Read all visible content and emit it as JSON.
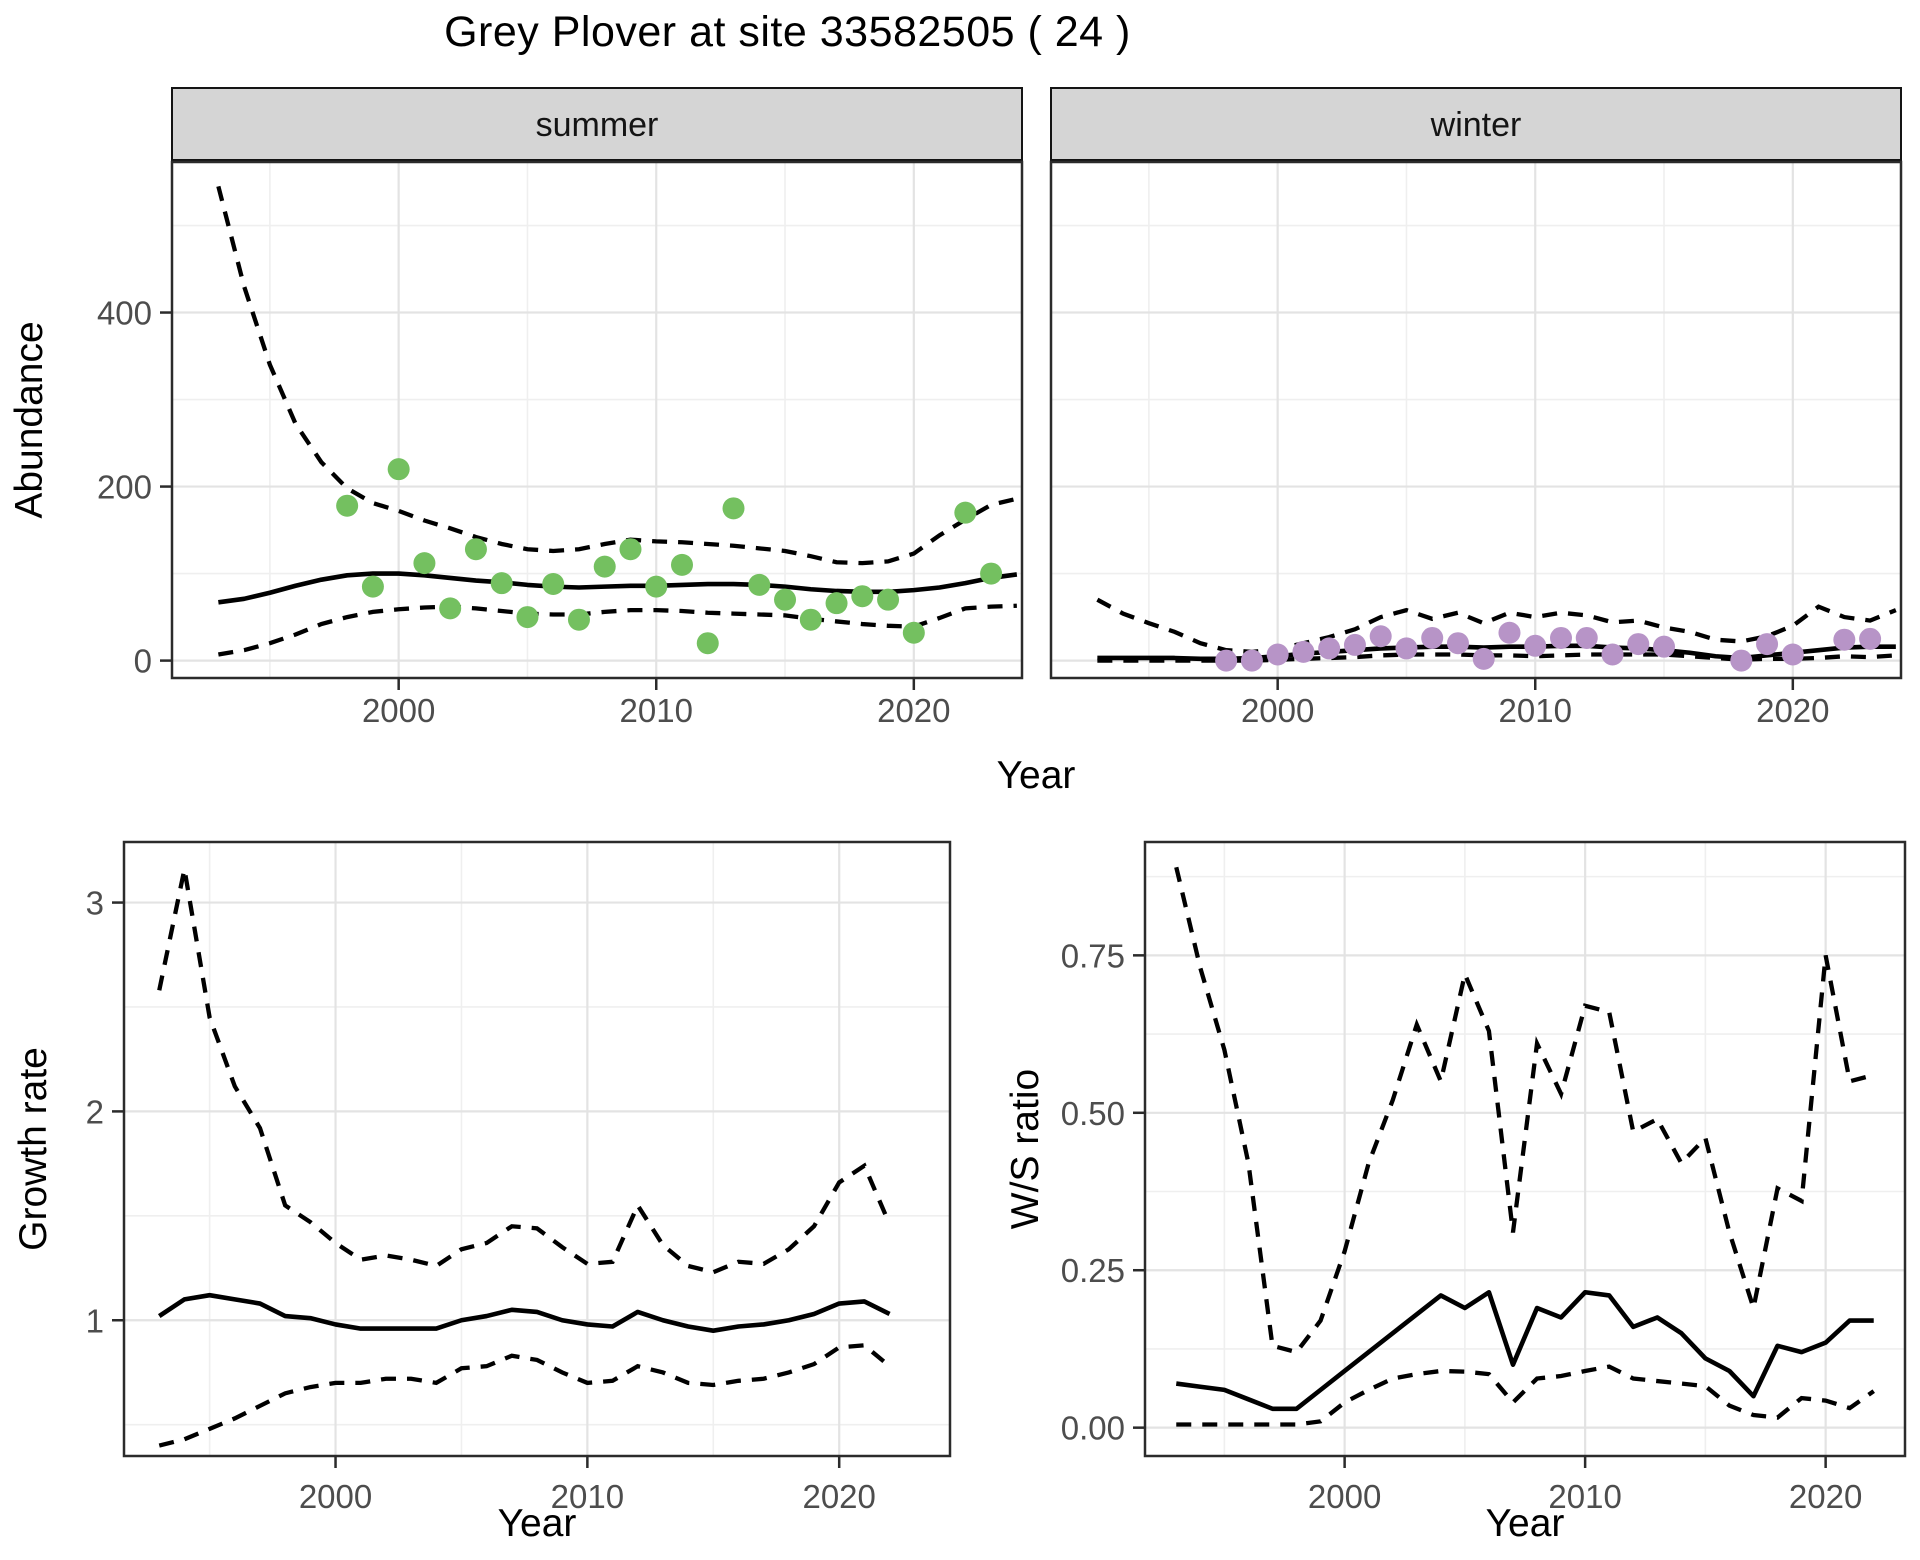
{
  "title": "Grey Plover at site 33582505 ( 24 )",
  "colors": {
    "background": "#FFFFFF",
    "summer_point": "#74C060",
    "winter_point": "#B794C7",
    "line": "#000000",
    "grid_major": "#E3E3E3",
    "grid_minor": "#EFEFEF",
    "strip_fill": "#D5D5D5",
    "strip_text": "#141414",
    "panel_border": "#2B2B2B",
    "tick_label": "#4D4D4D",
    "axis_title": "#000000"
  },
  "chart_data": [
    {
      "id": "abundance",
      "type": "scatter",
      "xlabel": "Year",
      "ylabel": "Abundance",
      "xlim": [
        1991.2,
        2024.2
      ],
      "ylim": [
        -20,
        573
      ],
      "xticks": [
        2000,
        2010,
        2020
      ],
      "xtick_labels": [
        "2000",
        "2010",
        "2020"
      ],
      "xminor": [
        1995,
        2005,
        2015
      ],
      "yticks": [
        0,
        200,
        400
      ],
      "ytick_labels": [
        "0",
        "200",
        "400"
      ],
      "yminor": [
        100,
        300,
        500
      ],
      "legend_position": "none",
      "grid": true,
      "facets": [
        {
          "label": "summer",
          "point_color_key": "summer_point",
          "points": {
            "years": [
              1998,
              1999,
              2000,
              2001,
              2002,
              2003,
              2004,
              2005,
              2006,
              2007,
              2008,
              2009,
              2010,
              2011,
              2012,
              2013,
              2014,
              2015,
              2016,
              2017,
              2018,
              2019,
              2020,
              2022,
              2023
            ],
            "values": [
              178,
              85,
              220,
              112,
              60,
              128,
              89,
              50,
              88,
              47,
              108,
              128,
              85,
              110,
              20,
              175,
              87,
              70,
              47,
              66,
              74,
              70,
              32,
              170,
              100
            ]
          },
          "fit": {
            "start": 1993,
            "values": [
              67,
              71,
              78,
              86,
              93,
              98,
              100,
              100,
              98,
              95,
              92,
              90,
              87,
              85,
              84,
              85,
              86,
              86,
              87,
              88,
              88,
              87,
              85,
              82,
              80,
              79,
              79,
              81,
              84,
              89,
              95,
              99
            ]
          },
          "upper": {
            "start": 1993,
            "values": [
              545,
              430,
              340,
              272,
              228,
              198,
              181,
              172,
              161,
              152,
              142,
              134,
              128,
              126,
              128,
              134,
              139,
              137,
              136,
              134,
              132,
              129,
              126,
              120,
              113,
              112,
              114,
              123,
              144,
              162,
              179,
              186
            ]
          },
          "lower": {
            "start": 1993,
            "values": [
              7,
              12,
              20,
              30,
              42,
              50,
              56,
              59,
              61,
              62,
              60,
              57,
              54,
              53,
              53,
              56,
              58,
              58,
              57,
              55,
              54,
              53,
              52,
              48,
              45,
              42,
              40,
              39,
              49,
              60,
              62,
              63
            ]
          }
        },
        {
          "label": "winter",
          "point_color_key": "winter_point",
          "points": {
            "years": [
              1998,
              1999,
              2000,
              2001,
              2002,
              2003,
              2004,
              2005,
              2006,
              2007,
              2008,
              2009,
              2010,
              2011,
              2012,
              2013,
              2014,
              2015,
              2018,
              2019,
              2020,
              2022,
              2023
            ],
            "values": [
              0,
              0,
              7,
              10,
              14,
              18,
              28,
              14,
              26,
              20,
              2,
              32,
              17,
              26,
              26,
              7,
              19,
              16,
              0,
              19,
              7,
              24,
              25
            ]
          },
          "fit": {
            "start": 1993,
            "values": [
              3,
              3,
              3,
              3,
              2,
              2,
              3,
              5,
              8,
              10,
              12,
              14,
              15,
              16,
              16,
              15,
              16,
              16,
              17,
              17,
              15,
              14,
              12,
              9,
              5,
              3,
              6,
              9,
              12,
              15,
              16,
              16
            ]
          },
          "upper": {
            "start": 1993,
            "values": [
              70,
              54,
              43,
              33,
              20,
              12,
              10,
              13,
              20,
              27,
              36,
              50,
              58,
              48,
              55,
              43,
              55,
              50,
              55,
              52,
              44,
              46,
              38,
              33,
              24,
              22,
              28,
              40,
              62,
              50,
              46,
              58
            ]
          },
          "lower": {
            "start": 1993,
            "values": [
              0,
              0,
              0,
              0,
              0,
              0,
              0,
              1,
              2,
              3,
              4,
              6,
              7,
              7,
              7,
              6,
              6,
              5,
              6,
              7,
              7,
              7,
              7,
              5,
              3,
              1,
              2,
              2,
              3,
              5,
              4,
              6
            ]
          }
        }
      ]
    },
    {
      "id": "growth_rate",
      "type": "line",
      "xlabel": "Year",
      "ylabel": "Growth rate",
      "xlim": [
        1991.6,
        2024.4
      ],
      "ylim": [
        0.35,
        3.29
      ],
      "xticks": [
        2000,
        2010,
        2020
      ],
      "xtick_labels": [
        "2000",
        "2010",
        "2020"
      ],
      "xminor": [
        1995,
        2005,
        2015
      ],
      "yticks": [
        1,
        2,
        3
      ],
      "ytick_labels": [
        "1",
        "2",
        "3"
      ],
      "yminor": [
        0.5,
        1.5,
        2.5
      ],
      "legend_position": "none",
      "grid": true,
      "facets": [
        {
          "label": null,
          "fit": {
            "start": 1993,
            "values": [
              1.02,
              1.1,
              1.12,
              1.1,
              1.08,
              1.02,
              1.01,
              0.98,
              0.96,
              0.96,
              0.96,
              0.96,
              1.0,
              1.02,
              1.05,
              1.04,
              1.0,
              0.98,
              0.97,
              1.04,
              1.0,
              0.97,
              0.95,
              0.97,
              0.98,
              1.0,
              1.03,
              1.08,
              1.09,
              1.03
            ]
          },
          "upper": {
            "start": 1993,
            "values": [
              2.58,
              3.16,
              2.45,
              2.12,
              1.92,
              1.55,
              1.47,
              1.37,
              1.29,
              1.31,
              1.29,
              1.26,
              1.34,
              1.37,
              1.45,
              1.44,
              1.35,
              1.27,
              1.28,
              1.55,
              1.36,
              1.26,
              1.23,
              1.28,
              1.27,
              1.34,
              1.45,
              1.66,
              1.74,
              1.46
            ]
          },
          "lower": {
            "start": 1993,
            "values": [
              0.4,
              0.43,
              0.48,
              0.53,
              0.59,
              0.65,
              0.68,
              0.7,
              0.7,
              0.72,
              0.72,
              0.7,
              0.77,
              0.78,
              0.83,
              0.81,
              0.75,
              0.7,
              0.71,
              0.78,
              0.75,
              0.7,
              0.69,
              0.71,
              0.72,
              0.75,
              0.79,
              0.87,
              0.88,
              0.78
            ]
          }
        }
      ]
    },
    {
      "id": "ws_ratio",
      "type": "line",
      "xlabel": "Year",
      "ylabel": "W/S ratio",
      "xlim": [
        1991.7,
        2023.3
      ],
      "ylim": [
        -0.045,
        0.93
      ],
      "xticks": [
        2000,
        2010,
        2020
      ],
      "xtick_labels": [
        "2000",
        "2010",
        "2020"
      ],
      "xminor": [
        1995,
        2005,
        2015
      ],
      "yticks": [
        0,
        0.25,
        0.5,
        0.75
      ],
      "ytick_labels": [
        "0.00",
        "0.25",
        "0.50",
        "0.75"
      ],
      "yminor": [
        0.125,
        0.375,
        0.625,
        0.875
      ],
      "legend_position": "none",
      "grid": true,
      "facets": [
        {
          "label": null,
          "fit": {
            "start": 1993,
            "values": [
              0.07,
              0.065,
              0.06,
              0.045,
              0.03,
              0.03,
              0.06,
              0.09,
              0.12,
              0.15,
              0.18,
              0.21,
              0.19,
              0.215,
              0.1,
              0.19,
              0.175,
              0.215,
              0.21,
              0.16,
              0.175,
              0.15,
              0.11,
              0.09,
              0.05,
              0.13,
              0.12,
              0.135,
              0.17,
              0.17
            ]
          },
          "upper": {
            "start": 1993,
            "values": [
              0.89,
              0.73,
              0.6,
              0.42,
              0.13,
              0.12,
              0.17,
              0.28,
              0.42,
              0.52,
              0.64,
              0.55,
              0.72,
              0.63,
              0.31,
              0.61,
              0.53,
              0.67,
              0.66,
              0.47,
              0.49,
              0.42,
              0.46,
              0.31,
              0.19,
              0.38,
              0.36,
              0.75,
              0.55,
              0.56
            ]
          },
          "lower": {
            "start": 1993,
            "values": [
              0.005,
              0.005,
              0.005,
              0.005,
              0.005,
              0.005,
              0.01,
              0.04,
              0.06,
              0.078,
              0.085,
              0.09,
              0.089,
              0.085,
              0.04,
              0.078,
              0.082,
              0.09,
              0.097,
              0.078,
              0.074,
              0.07,
              0.066,
              0.035,
              0.02,
              0.016,
              0.047,
              0.043,
              0.031,
              0.058
            ]
          }
        }
      ]
    }
  ]
}
